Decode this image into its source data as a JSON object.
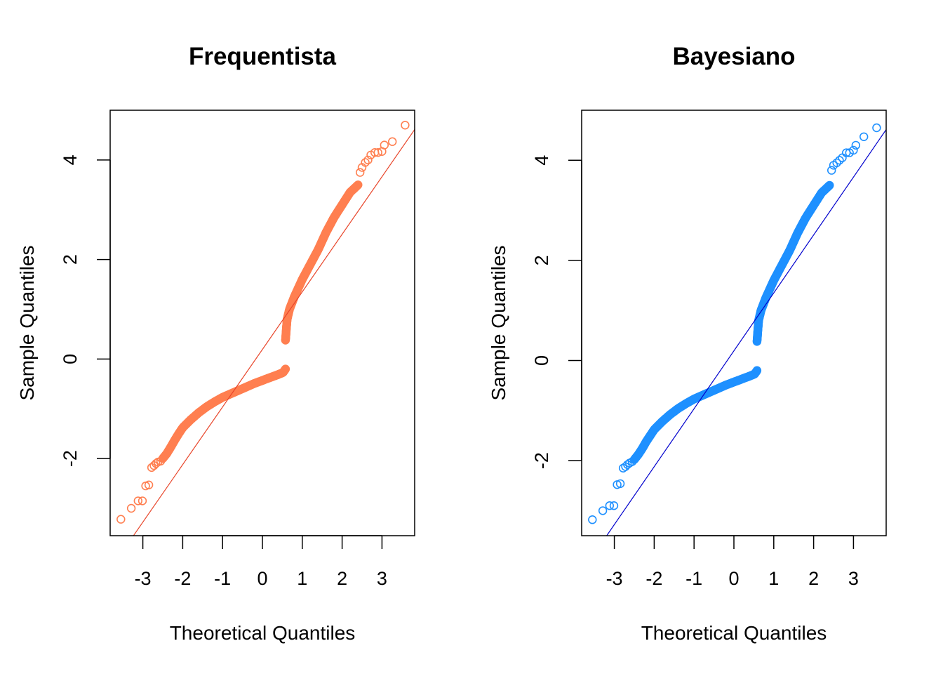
{
  "chart_data": [
    {
      "type": "scatter",
      "title": "Frequentista",
      "xlabel": "Theoretical Quantiles",
      "ylabel": "Sample Quantiles",
      "xticks": [
        -3,
        -2,
        -1,
        0,
        1,
        2,
        3
      ],
      "yticks": [
        -2,
        0,
        2,
        4
      ],
      "xticklabels": [
        "-3",
        "-2",
        "-1",
        "0",
        "1",
        "2",
        "3"
      ],
      "yticklabels": [
        "-2",
        "0",
        "2",
        "4"
      ],
      "xlim": [
        -3.82,
        3.82
      ],
      "ylim": [
        -3.55,
        5.0
      ],
      "point_color": "#ff7f50",
      "line_color": "#e8452a",
      "reference_line": {
        "slope": 1.157,
        "intercept": 0.193
      },
      "points": [
        [
          -3.55,
          -3.22
        ],
        [
          -3.29,
          -3.0
        ],
        [
          -3.12,
          -2.85
        ],
        [
          -3.01,
          -2.85
        ],
        [
          -2.93,
          -2.55
        ],
        [
          -2.85,
          -2.53
        ],
        [
          -2.78,
          -2.18
        ],
        [
          -2.72,
          -2.14
        ],
        [
          -2.67,
          -2.1
        ],
        [
          -2.62,
          -2.07
        ],
        [
          -2.55,
          -2.05
        ]
      ],
      "lower_branch": [
        [
          -2.5,
          -2.0
        ],
        [
          -2.4,
          -1.9
        ],
        [
          -2.3,
          -1.77
        ],
        [
          -2.2,
          -1.63
        ],
        [
          -2.1,
          -1.5
        ],
        [
          -2.0,
          -1.38
        ],
        [
          -1.8,
          -1.22
        ],
        [
          -1.6,
          -1.08
        ],
        [
          -1.4,
          -0.96
        ],
        [
          -1.2,
          -0.86
        ],
        [
          -1.0,
          -0.77
        ],
        [
          -0.8,
          -0.7
        ],
        [
          -0.6,
          -0.63
        ],
        [
          -0.4,
          -0.56
        ],
        [
          -0.2,
          -0.49
        ],
        [
          0.0,
          -0.43
        ],
        [
          0.2,
          -0.37
        ],
        [
          0.4,
          -0.31
        ],
        [
          0.52,
          -0.27
        ],
        [
          0.58,
          -0.2
        ]
      ],
      "upper_branch": [
        [
          0.58,
          0.38
        ],
        [
          0.6,
          0.6
        ],
        [
          0.62,
          0.8
        ],
        [
          0.68,
          1.0
        ],
        [
          0.8,
          1.25
        ],
        [
          1.0,
          1.6
        ],
        [
          1.2,
          1.9
        ],
        [
          1.4,
          2.2
        ],
        [
          1.6,
          2.55
        ],
        [
          1.8,
          2.85
        ],
        [
          2.0,
          3.1
        ],
        [
          2.2,
          3.35
        ],
        [
          2.4,
          3.5
        ]
      ],
      "upper_tail": [
        [
          2.45,
          3.75
        ],
        [
          2.5,
          3.85
        ],
        [
          2.58,
          3.95
        ],
        [
          2.65,
          4.0
        ],
        [
          2.72,
          4.1
        ],
        [
          2.82,
          4.15
        ],
        [
          2.9,
          4.15
        ],
        [
          3.0,
          4.17
        ],
        [
          3.06,
          4.3
        ],
        [
          3.26,
          4.37
        ],
        [
          3.58,
          4.7
        ]
      ]
    },
    {
      "type": "scatter",
      "title": "Bayesiano",
      "xlabel": "Theoretical Quantiles",
      "ylabel": "Sample Quantiles",
      "xticks": [
        -3,
        -2,
        -1,
        0,
        1,
        2,
        3
      ],
      "yticks": [
        -2,
        0,
        2,
        4
      ],
      "xticklabels": [
        "-3",
        "-2",
        "-1",
        "0",
        "1",
        "2",
        "3"
      ],
      "yticklabels": [
        "-2",
        "0",
        "2",
        "4"
      ],
      "xlim": [
        -3.82,
        3.82
      ],
      "ylim": [
        -3.5,
        5.0
      ],
      "point_color": "#1e90ff",
      "line_color": "#0000cd",
      "reference_line": {
        "slope": 1.157,
        "intercept": 0.193
      },
      "points": [
        [
          -3.55,
          -3.18
        ],
        [
          -3.29,
          -3.0
        ],
        [
          -3.12,
          -2.9
        ],
        [
          -3.01,
          -2.9
        ],
        [
          -2.93,
          -2.48
        ],
        [
          -2.85,
          -2.46
        ],
        [
          -2.78,
          -2.15
        ],
        [
          -2.72,
          -2.12
        ],
        [
          -2.67,
          -2.08
        ],
        [
          -2.62,
          -2.05
        ],
        [
          -2.55,
          -2.02
        ]
      ],
      "lower_branch": [
        [
          -2.5,
          -1.98
        ],
        [
          -2.4,
          -1.88
        ],
        [
          -2.3,
          -1.76
        ],
        [
          -2.2,
          -1.62
        ],
        [
          -2.1,
          -1.5
        ],
        [
          -2.0,
          -1.38
        ],
        [
          -1.8,
          -1.22
        ],
        [
          -1.6,
          -1.08
        ],
        [
          -1.4,
          -0.96
        ],
        [
          -1.2,
          -0.86
        ],
        [
          -1.0,
          -0.77
        ],
        [
          -0.8,
          -0.7
        ],
        [
          -0.6,
          -0.63
        ],
        [
          -0.4,
          -0.56
        ],
        [
          -0.2,
          -0.49
        ],
        [
          0.0,
          -0.43
        ],
        [
          0.2,
          -0.37
        ],
        [
          0.4,
          -0.31
        ],
        [
          0.52,
          -0.27
        ],
        [
          0.58,
          -0.2
        ]
      ],
      "upper_branch": [
        [
          0.58,
          0.38
        ],
        [
          0.6,
          0.6
        ],
        [
          0.62,
          0.8
        ],
        [
          0.68,
          1.0
        ],
        [
          0.8,
          1.25
        ],
        [
          1.0,
          1.6
        ],
        [
          1.2,
          1.9
        ],
        [
          1.4,
          2.2
        ],
        [
          1.6,
          2.55
        ],
        [
          1.8,
          2.85
        ],
        [
          2.0,
          3.1
        ],
        [
          2.2,
          3.35
        ],
        [
          2.4,
          3.5
        ]
      ],
      "upper_tail": [
        [
          2.45,
          3.8
        ],
        [
          2.5,
          3.9
        ],
        [
          2.58,
          3.95
        ],
        [
          2.65,
          4.0
        ],
        [
          2.72,
          4.05
        ],
        [
          2.82,
          4.15
        ],
        [
          2.9,
          4.15
        ],
        [
          3.0,
          4.2
        ],
        [
          3.06,
          4.3
        ],
        [
          3.26,
          4.47
        ],
        [
          3.58,
          4.65
        ]
      ]
    }
  ]
}
